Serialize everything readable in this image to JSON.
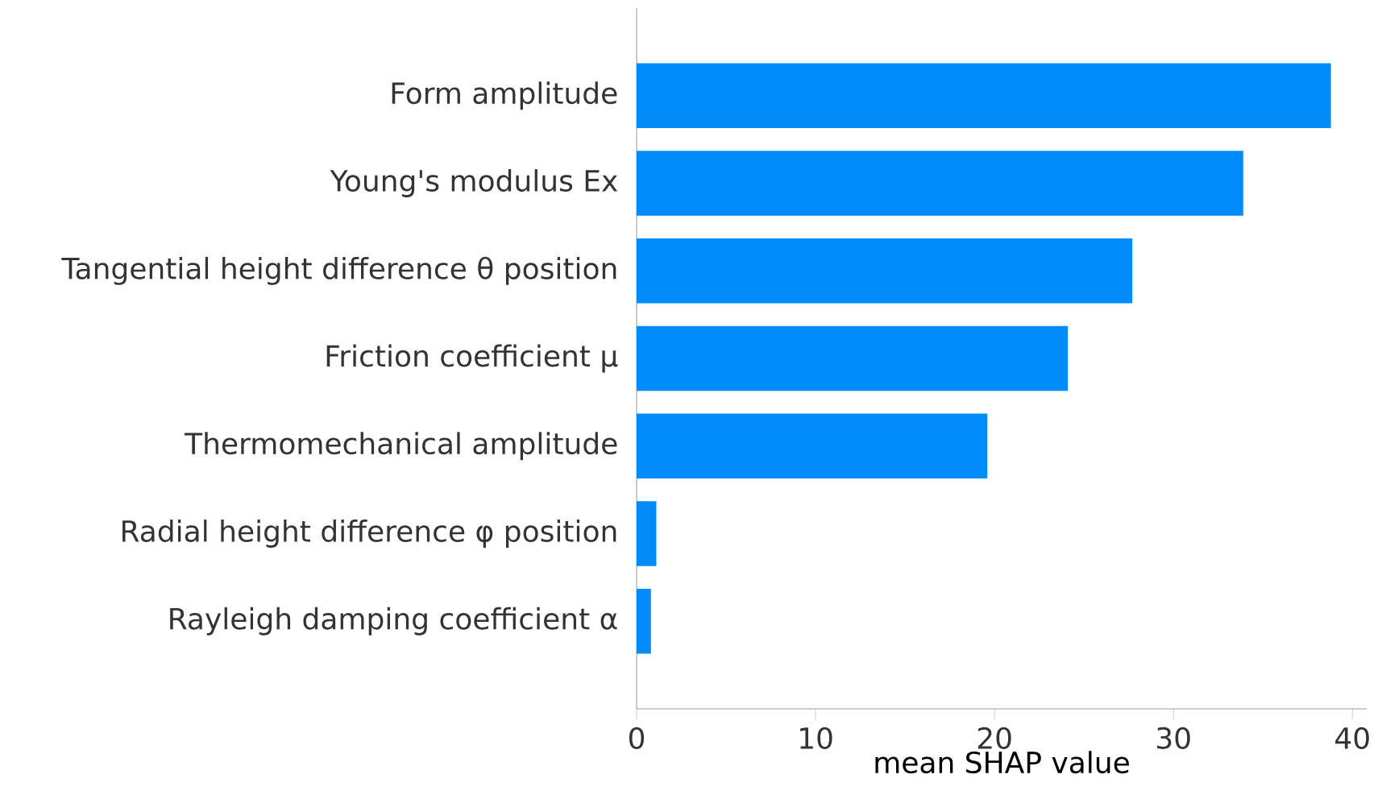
{
  "chart_data": {
    "type": "bar",
    "orientation": "horizontal",
    "xlabel": "mean SHAP value",
    "categories": [
      "Form amplitude",
      "Young's modulus Ex",
      "Tangential height difference θ position",
      "Friction coefficient μ",
      "Thermomechanical amplitude",
      "Radial height difference φ position",
      "Rayleigh damping coefficient α"
    ],
    "values": [
      38.8,
      33.9,
      27.7,
      24.1,
      19.6,
      1.1,
      0.8
    ],
    "color": "#008bfb",
    "xlim": [
      0,
      40.8
    ],
    "xticks": [
      0,
      10,
      20,
      30,
      40
    ]
  }
}
